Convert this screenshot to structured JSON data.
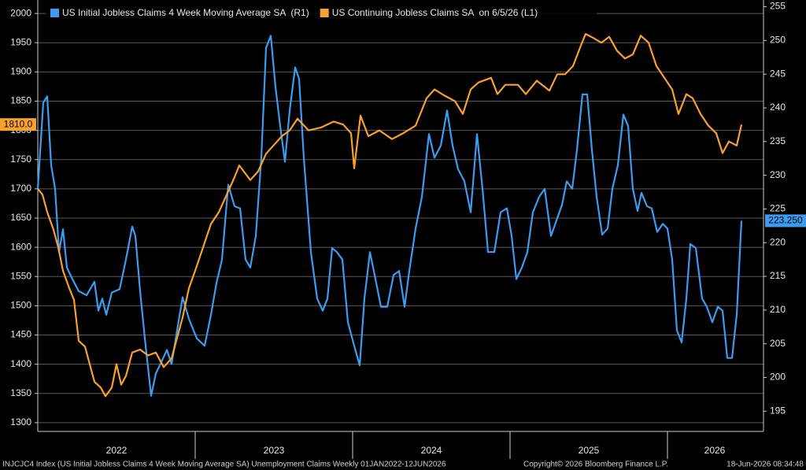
{
  "chart_data": {
    "type": "line",
    "xlim": [
      2022.0,
      2026.61
    ],
    "xticks": [
      {
        "value": 2022.5,
        "label": "2022"
      },
      {
        "value": 2023.5,
        "label": "2023"
      },
      {
        "value": 2024.5,
        "label": "2024"
      },
      {
        "value": 2025.5,
        "label": "2025"
      },
      {
        "value": 2026.3,
        "label": "2026"
      }
    ],
    "xdividers": [
      2023,
      2024,
      2025,
      2026
    ],
    "ylim": [
      1285,
      2023
    ],
    "yticks": [
      1300,
      1350,
      1400,
      1450,
      1500,
      1550,
      1600,
      1650,
      1700,
      1750,
      1800,
      1850,
      1900,
      1950,
      2000
    ],
    "y2lim": [
      192,
      256
    ],
    "y2ticks": [
      195,
      200,
      205,
      210,
      215,
      220,
      225,
      230,
      235,
      240,
      245,
      250,
      255
    ],
    "grid": true,
    "series": [
      {
        "name": "US Initial Jobless Claims 4 Week Moving Average SA  (R1)",
        "color": "#3d9bf0",
        "axis": "y2",
        "end_label": "223.250",
        "x": [
          2022.0,
          2022.035,
          2022.06,
          2022.085,
          2022.11,
          2022.135,
          2022.16,
          2022.185,
          2022.22,
          2022.26,
          2022.31,
          2022.36,
          2022.385,
          2022.41,
          2022.435,
          2022.47,
          2022.52,
          2022.56,
          2022.6,
          2022.62,
          2022.65,
          2022.685,
          2022.72,
          2022.75,
          2022.785,
          2022.82,
          2022.85,
          2022.885,
          2022.92,
          2022.96,
          2023.01,
          2023.06,
          2023.1,
          2023.135,
          2023.17,
          2023.21,
          2023.25,
          2023.285,
          2023.32,
          2023.35,
          2023.385,
          2023.42,
          2023.45,
          2023.48,
          2023.51,
          2023.54,
          2023.57,
          2023.6,
          2023.635,
          2023.66,
          2023.69,
          2023.735,
          2023.775,
          2023.81,
          2023.84,
          2023.87,
          2023.9,
          2023.935,
          2023.97,
          2024.01,
          2024.045,
          2024.075,
          2024.11,
          2024.145,
          2024.18,
          2024.22,
          2024.26,
          2024.295,
          2024.33,
          2024.36,
          2024.4,
          2024.44,
          2024.485,
          2024.52,
          2024.56,
          2024.6,
          2024.635,
          2024.67,
          2024.71,
          2024.75,
          2024.79,
          2024.825,
          2024.86,
          2024.9,
          2024.94,
          2024.98,
          2025.01,
          2025.04,
          2025.075,
          2025.11,
          2025.145,
          2025.185,
          2025.22,
          2025.26,
          2025.295,
          2025.33,
          2025.36,
          2025.395,
          2025.425,
          2025.46,
          2025.49,
          2025.52,
          2025.55,
          2025.585,
          2025.62,
          2025.65,
          2025.685,
          2025.72,
          2025.75,
          2025.78,
          2025.81,
          2025.835,
          2025.87,
          2025.9,
          2025.935,
          2025.97,
          2026.0,
          2026.03,
          2026.06,
          2026.09,
          2026.12,
          2026.145,
          2026.18,
          2026.22,
          2026.25,
          2026.285,
          2026.32,
          2026.35,
          2026.38,
          2026.41,
          2026.44,
          2026.47
        ],
        "values": [
          228,
          240.8,
          241.7,
          231.5,
          228,
          218.6,
          222,
          216.3,
          214.6,
          212.8,
          212.2,
          214.2,
          209.9,
          211.7,
          209.3,
          212.6,
          213.1,
          217.5,
          222.4,
          221,
          212.8,
          204.7,
          197.3,
          200.6,
          202.3,
          204.1,
          202,
          207,
          211.9,
          208.7,
          205.8,
          204.7,
          209.3,
          214,
          217.5,
          228.6,
          225.4,
          225.1,
          217.5,
          216.3,
          221,
          232.6,
          248.9,
          250.7,
          243.1,
          237.3,
          232,
          239.6,
          246,
          244.3,
          232.6,
          218.6,
          211.7,
          209.9,
          211.7,
          219.2,
          218.6,
          217.5,
          208.2,
          204.7,
          201.8,
          211.7,
          218.6,
          214.6,
          210.5,
          210.5,
          215.2,
          215.8,
          210.5,
          215.8,
          222.1,
          226.8,
          236.1,
          232.6,
          234.4,
          239.6,
          234.4,
          230.9,
          229.1,
          224.5,
          236.1,
          228,
          218.6,
          218.6,
          224.5,
          225.1,
          221,
          214.6,
          216.3,
          218.6,
          224.5,
          226.8,
          228,
          221,
          223.3,
          225.6,
          229.1,
          228,
          233.8,
          242,
          242,
          233.8,
          226.8,
          221.2,
          222.1,
          228,
          231.5,
          239,
          237.3,
          228,
          224.7,
          227.4,
          225.4,
          225.1,
          221.6,
          222.8,
          222.1,
          217.5,
          207,
          205.2,
          211.7,
          219.8,
          219.2,
          211.7,
          210.5,
          208.2,
          210.5,
          209.9,
          202.9,
          202.9,
          209.3,
          223.25
        ]
      },
      {
        "name": "US Continuing Jobless Claims SA  on 6/5/26 (L1)",
        "color": "#f7a12e",
        "axis": "y",
        "end_label": "1810.0",
        "x": [
          2022.0,
          2022.03,
          2022.06,
          2022.1,
          2022.13,
          2022.16,
          2022.2,
          2022.23,
          2022.26,
          2022.3,
          2022.33,
          2022.36,
          2022.4,
          2022.43,
          2022.47,
          2022.5,
          2022.53,
          2022.56,
          2022.6,
          2022.65,
          2022.7,
          2022.75,
          2022.8,
          2022.85,
          2022.88,
          2022.92,
          2022.96,
          2023.0,
          2023.05,
          2023.1,
          2023.15,
          2023.2,
          2023.25,
          2023.28,
          2023.35,
          2023.4,
          2023.45,
          2023.5,
          2023.55,
          2023.6,
          2023.65,
          2023.72,
          2023.8,
          2023.88,
          2023.94,
          2023.99,
          2024.01,
          2024.05,
          2024.1,
          2024.17,
          2024.25,
          2024.32,
          2024.4,
          2024.47,
          2024.52,
          2024.58,
          2024.65,
          2024.7,
          2024.75,
          2024.8,
          2024.88,
          2024.92,
          2024.97,
          2025.05,
          2025.1,
          2025.17,
          2025.25,
          2025.3,
          2025.35,
          2025.4,
          2025.45,
          2025.48,
          2025.53,
          2025.58,
          2025.63,
          2025.68,
          2025.73,
          2025.78,
          2025.83,
          2025.88,
          2025.93,
          2025.98,
          2026.03,
          2026.07,
          2026.12,
          2026.16,
          2026.21,
          2026.26,
          2026.31,
          2026.35,
          2026.39,
          2026.44,
          2026.47
        ],
        "values": [
          1700,
          1690,
          1660,
          1630,
          1600,
          1560,
          1530,
          1510,
          1440,
          1430,
          1400,
          1370,
          1360,
          1345,
          1360,
          1400,
          1365,
          1380,
          1420,
          1425,
          1415,
          1420,
          1395,
          1410,
          1440,
          1480,
          1530,
          1560,
          1600,
          1640,
          1660,
          1690,
          1720,
          1740,
          1715,
          1730,
          1760,
          1775,
          1790,
          1800,
          1820,
          1800,
          1805,
          1815,
          1810,
          1795,
          1735,
          1825,
          1790,
          1800,
          1785,
          1795,
          1808,
          1855,
          1870,
          1860,
          1850,
          1828,
          1870,
          1882,
          1890,
          1862,
          1878,
          1878,
          1862,
          1885,
          1868,
          1896,
          1896,
          1910,
          1945,
          1965,
          1958,
          1950,
          1960,
          1936,
          1923,
          1930,
          1962,
          1950,
          1910,
          1890,
          1870,
          1828,
          1862,
          1855,
          1828,
          1808,
          1795,
          1761,
          1781,
          1774,
          1810
        ]
      }
    ]
  },
  "footer": {
    "source": "INJCJC4 Index (US Initial Jobless Claims 4 Week Moving Average SA) Unemployment Claims Weekly 01JAN2022-12JUN2026",
    "copyright": "Copyright© 2026 Bloomberg Finance L.P.",
    "timestamp": "18-Jun-2026 08:34:48"
  }
}
